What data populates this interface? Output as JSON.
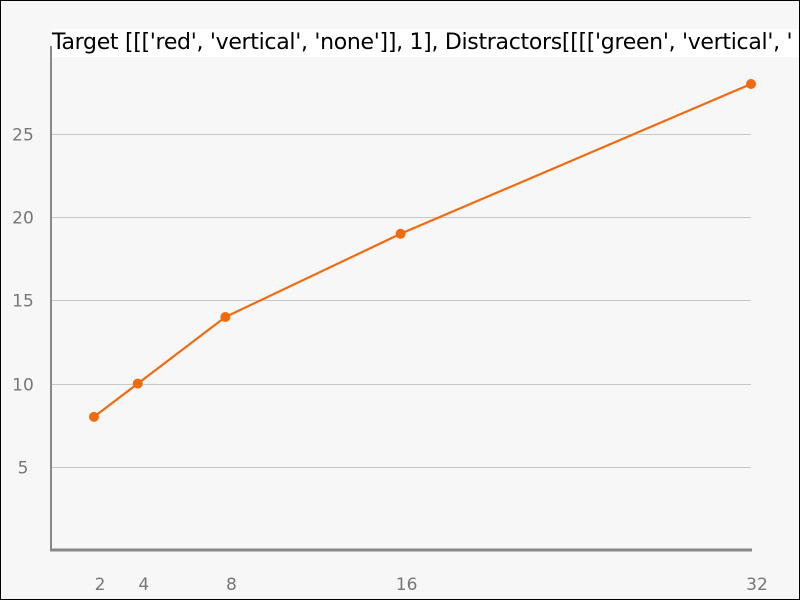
{
  "chart_data": {
    "type": "line",
    "title": "Target [[['red', 'vertical', 'none']], 1], Distractors[[[['green', 'vertical', '",
    "xlabel": "",
    "ylabel": "",
    "x": [
      2,
      4,
      8,
      16,
      32
    ],
    "series": [
      {
        "values": [
          8,
          10,
          14,
          19,
          28
        ],
        "color": "#f26a10"
      }
    ],
    "x_ticks": [
      2,
      4,
      8,
      16,
      32
    ],
    "y_ticks": [
      5,
      10,
      15,
      20,
      25
    ],
    "xlim": [
      0,
      32
    ],
    "ylim": [
      0,
      28
    ],
    "grid": "horizontal",
    "colors": {
      "line": "#f26a10",
      "grid": "#c8c8c8",
      "axis": "#888888",
      "tick_text": "#777777",
      "plot_bg": "#f7f7f7"
    }
  }
}
